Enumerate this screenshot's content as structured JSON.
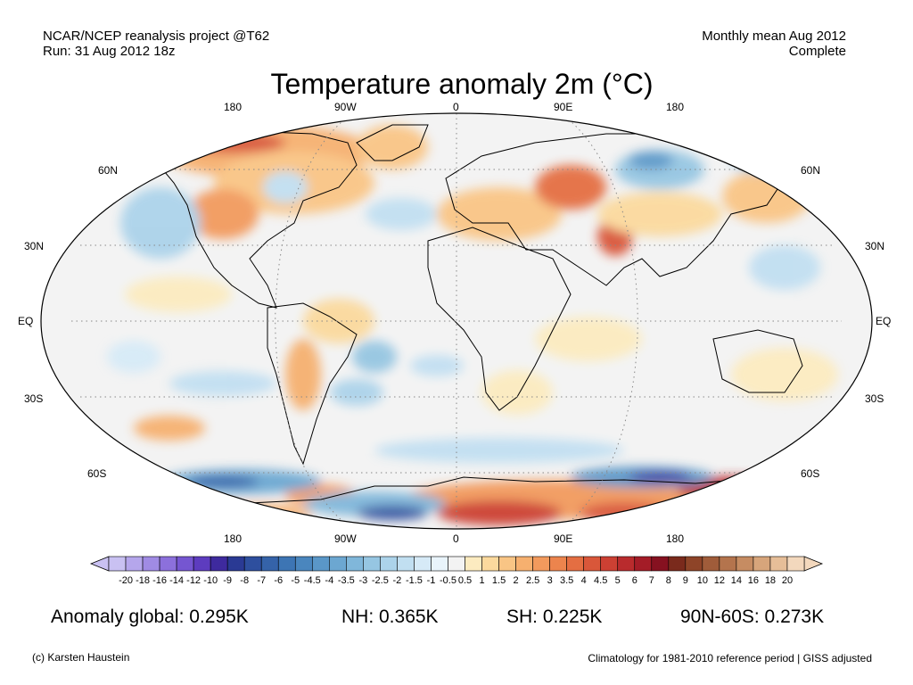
{
  "header": {
    "project": "NCAR/NCEP reanalysis project @T62",
    "run": "Run: 31 Aug 2012 18z",
    "period": "Monthly mean Aug 2012",
    "status": "Complete",
    "title": "Temperature anomaly 2m (°C)"
  },
  "map": {
    "projection": "robinson",
    "lon_labels_top": [
      "180",
      "90W",
      "0",
      "90E",
      "180"
    ],
    "lon_labels_bottom": [
      "180",
      "90W",
      "0",
      "90E",
      "180"
    ],
    "lat_labels": [
      "60N",
      "30N",
      "EQ",
      "30S",
      "60S"
    ],
    "gridlines": "dotted"
  },
  "colorbar": {
    "labels": [
      "-20",
      "-18",
      "-16",
      "-14",
      "-12",
      "-10",
      "-9",
      "-8",
      "-7",
      "-6",
      "-5",
      "-4.5",
      "-4",
      "-3.5",
      "-3",
      "-2.5",
      "-2",
      "-1.5",
      "-1",
      "-0.5",
      "0.5",
      "1",
      "1.5",
      "2",
      "2.5",
      "3",
      "3.5",
      "4",
      "4.5",
      "5",
      "6",
      "7",
      "8",
      "9",
      "10",
      "12",
      "14",
      "16",
      "18",
      "20"
    ],
    "colors": [
      "#c9c1f2",
      "#b5a6ec",
      "#a08be4",
      "#8c70dc",
      "#7556d1",
      "#5d3cbf",
      "#3e2a9e",
      "#2a3a94",
      "#2e4f9e",
      "#3563a9",
      "#3d75b4",
      "#4a86be",
      "#5a97c8",
      "#6ca7d1",
      "#80b7da",
      "#96c6e2",
      "#acd3ea",
      "#c1dff1",
      "#d6eaf7",
      "#e9f4fb",
      "#f3f3f3",
      "#fcebc0",
      "#fbd99d",
      "#f9c585",
      "#f6b06f",
      "#f29a5d",
      "#ec844d",
      "#e46e42",
      "#d9573a",
      "#cc4033",
      "#b92b2d",
      "#a41c27",
      "#861120",
      "#7a2a1c",
      "#8e4428",
      "#a05c3a",
      "#b4744d",
      "#c68c62",
      "#d7a57b",
      "#e6be98",
      "#f3d8bd"
    ],
    "left_arrow_color": "#c9c1f2",
    "right_arrow_color": "#f3d8bd"
  },
  "stats": {
    "global": "Anomaly global: 0.295K",
    "nh": "NH: 0.365K",
    "sh": "SH: 0.225K",
    "band": "90N-60S: 0.273K"
  },
  "footer": {
    "credit": "(c) Karsten Haustein",
    "note": "Climatology for 1981-2010 reference period | GISS adjusted"
  }
}
